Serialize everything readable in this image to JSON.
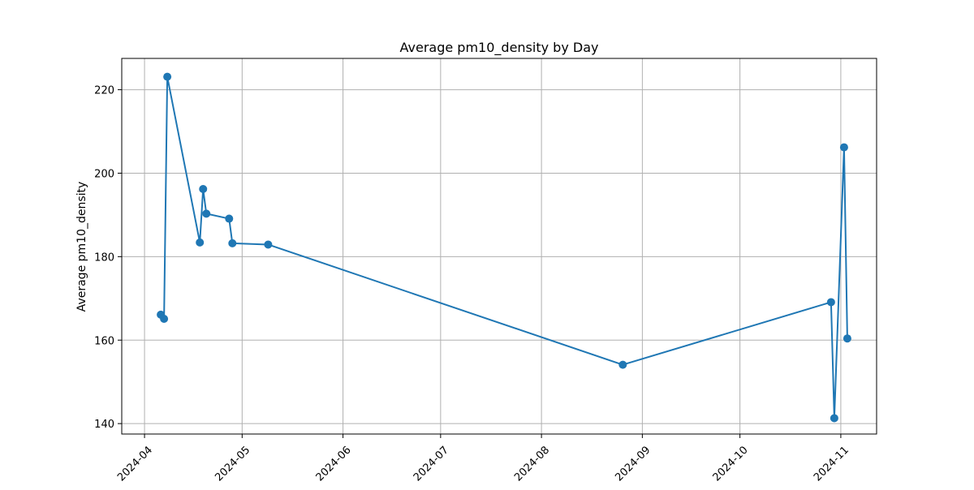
{
  "chart_data": {
    "type": "line",
    "title": "Average pm10_density by Day",
    "xlabel": "",
    "ylabel": "Average pm10_density",
    "x_tick_labels": [
      "2024-04",
      "2024-05",
      "2024-06",
      "2024-07",
      "2024-08",
      "2024-09",
      "2024-10",
      "2024-11"
    ],
    "y_tick_labels": [
      "140",
      "160",
      "180",
      "200",
      "220"
    ],
    "y_ticks": [
      140,
      160,
      180,
      200,
      220
    ],
    "xlim": [
      "2024-03-25",
      "2024-11-12"
    ],
    "ylim": [
      137.5,
      227.5
    ],
    "grid": true,
    "series": [
      {
        "color": "#1f77b4",
        "marker": "circle",
        "points": [
          {
            "x": "2024-04-06",
            "y": 166.1
          },
          {
            "x": "2024-04-07",
            "y": 165.1
          },
          {
            "x": "2024-04-08",
            "y": 223.1
          },
          {
            "x": "2024-04-18",
            "y": 183.4
          },
          {
            "x": "2024-04-19",
            "y": 196.2
          },
          {
            "x": "2024-04-20",
            "y": 190.3
          },
          {
            "x": "2024-04-27",
            "y": 189.1
          },
          {
            "x": "2024-04-28",
            "y": 183.2
          },
          {
            "x": "2024-05-09",
            "y": 182.9
          },
          {
            "x": "2024-08-26",
            "y": 154.1
          },
          {
            "x": "2024-10-29",
            "y": 169.1
          },
          {
            "x": "2024-10-30",
            "y": 141.3
          },
          {
            "x": "2024-11-02",
            "y": 206.2
          },
          {
            "x": "2024-11-03",
            "y": 160.4
          }
        ]
      }
    ]
  }
}
